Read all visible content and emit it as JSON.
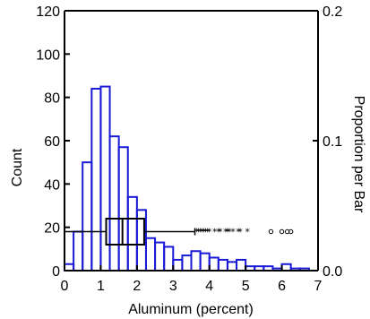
{
  "chart_data": {
    "type": "bar",
    "xlabel": "Aluminum (percent)",
    "ylabel": "Count",
    "y2label": "Proportion per Bar",
    "xlim": [
      0,
      7
    ],
    "ylim": [
      0,
      120
    ],
    "y2lim": [
      0.0,
      0.2
    ],
    "xticks": [
      "0",
      "1",
      "2",
      "3",
      "4",
      "5",
      "6",
      "7"
    ],
    "yticks": [
      "0",
      "20",
      "40",
      "60",
      "80",
      "100",
      "120"
    ],
    "y2ticks": [
      "0.0",
      "0.1",
      "0.2"
    ],
    "bar_color": "#1a1ad6",
    "bin_width": 0.25,
    "bins": [
      {
        "x0": 0.0,
        "count": 3
      },
      {
        "x0": 0.25,
        "count": 18
      },
      {
        "x0": 0.5,
        "count": 50
      },
      {
        "x0": 0.75,
        "count": 84
      },
      {
        "x0": 1.0,
        "count": 85
      },
      {
        "x0": 1.25,
        "count": 62
      },
      {
        "x0": 1.5,
        "count": 57
      },
      {
        "x0": 1.75,
        "count": 34
      },
      {
        "x0": 2.0,
        "count": 28
      },
      {
        "x0": 2.25,
        "count": 15
      },
      {
        "x0": 2.5,
        "count": 13
      },
      {
        "x0": 2.75,
        "count": 11
      },
      {
        "x0": 3.0,
        "count": 5
      },
      {
        "x0": 3.25,
        "count": 7
      },
      {
        "x0": 3.5,
        "count": 9
      },
      {
        "x0": 3.75,
        "count": 8
      },
      {
        "x0": 4.0,
        "count": 6
      },
      {
        "x0": 4.25,
        "count": 5
      },
      {
        "x0": 4.5,
        "count": 4
      },
      {
        "x0": 4.75,
        "count": 5
      },
      {
        "x0": 5.0,
        "count": 2
      },
      {
        "x0": 5.25,
        "count": 2
      },
      {
        "x0": 5.5,
        "count": 2
      },
      {
        "x0": 5.75,
        "count": 1
      },
      {
        "x0": 6.0,
        "count": 3
      },
      {
        "x0": 6.25,
        "count": 1
      },
      {
        "x0": 6.5,
        "count": 1
      }
    ],
    "boxplot": {
      "y_level": 18,
      "whisker_low": 0.0,
      "q1": 1.15,
      "median": 1.6,
      "q3": 2.2,
      "whisker_high": 3.6,
      "box_height_counts": 12,
      "outliers_star": [
        3.65,
        3.7,
        3.75,
        3.8,
        3.85,
        3.9,
        3.95,
        4.0,
        4.15,
        4.25,
        4.3,
        4.45,
        4.5,
        4.55,
        4.65,
        4.8,
        4.85,
        5.05
      ],
      "outliers_circle": [
        5.7,
        6.0,
        6.15,
        6.25
      ]
    }
  }
}
